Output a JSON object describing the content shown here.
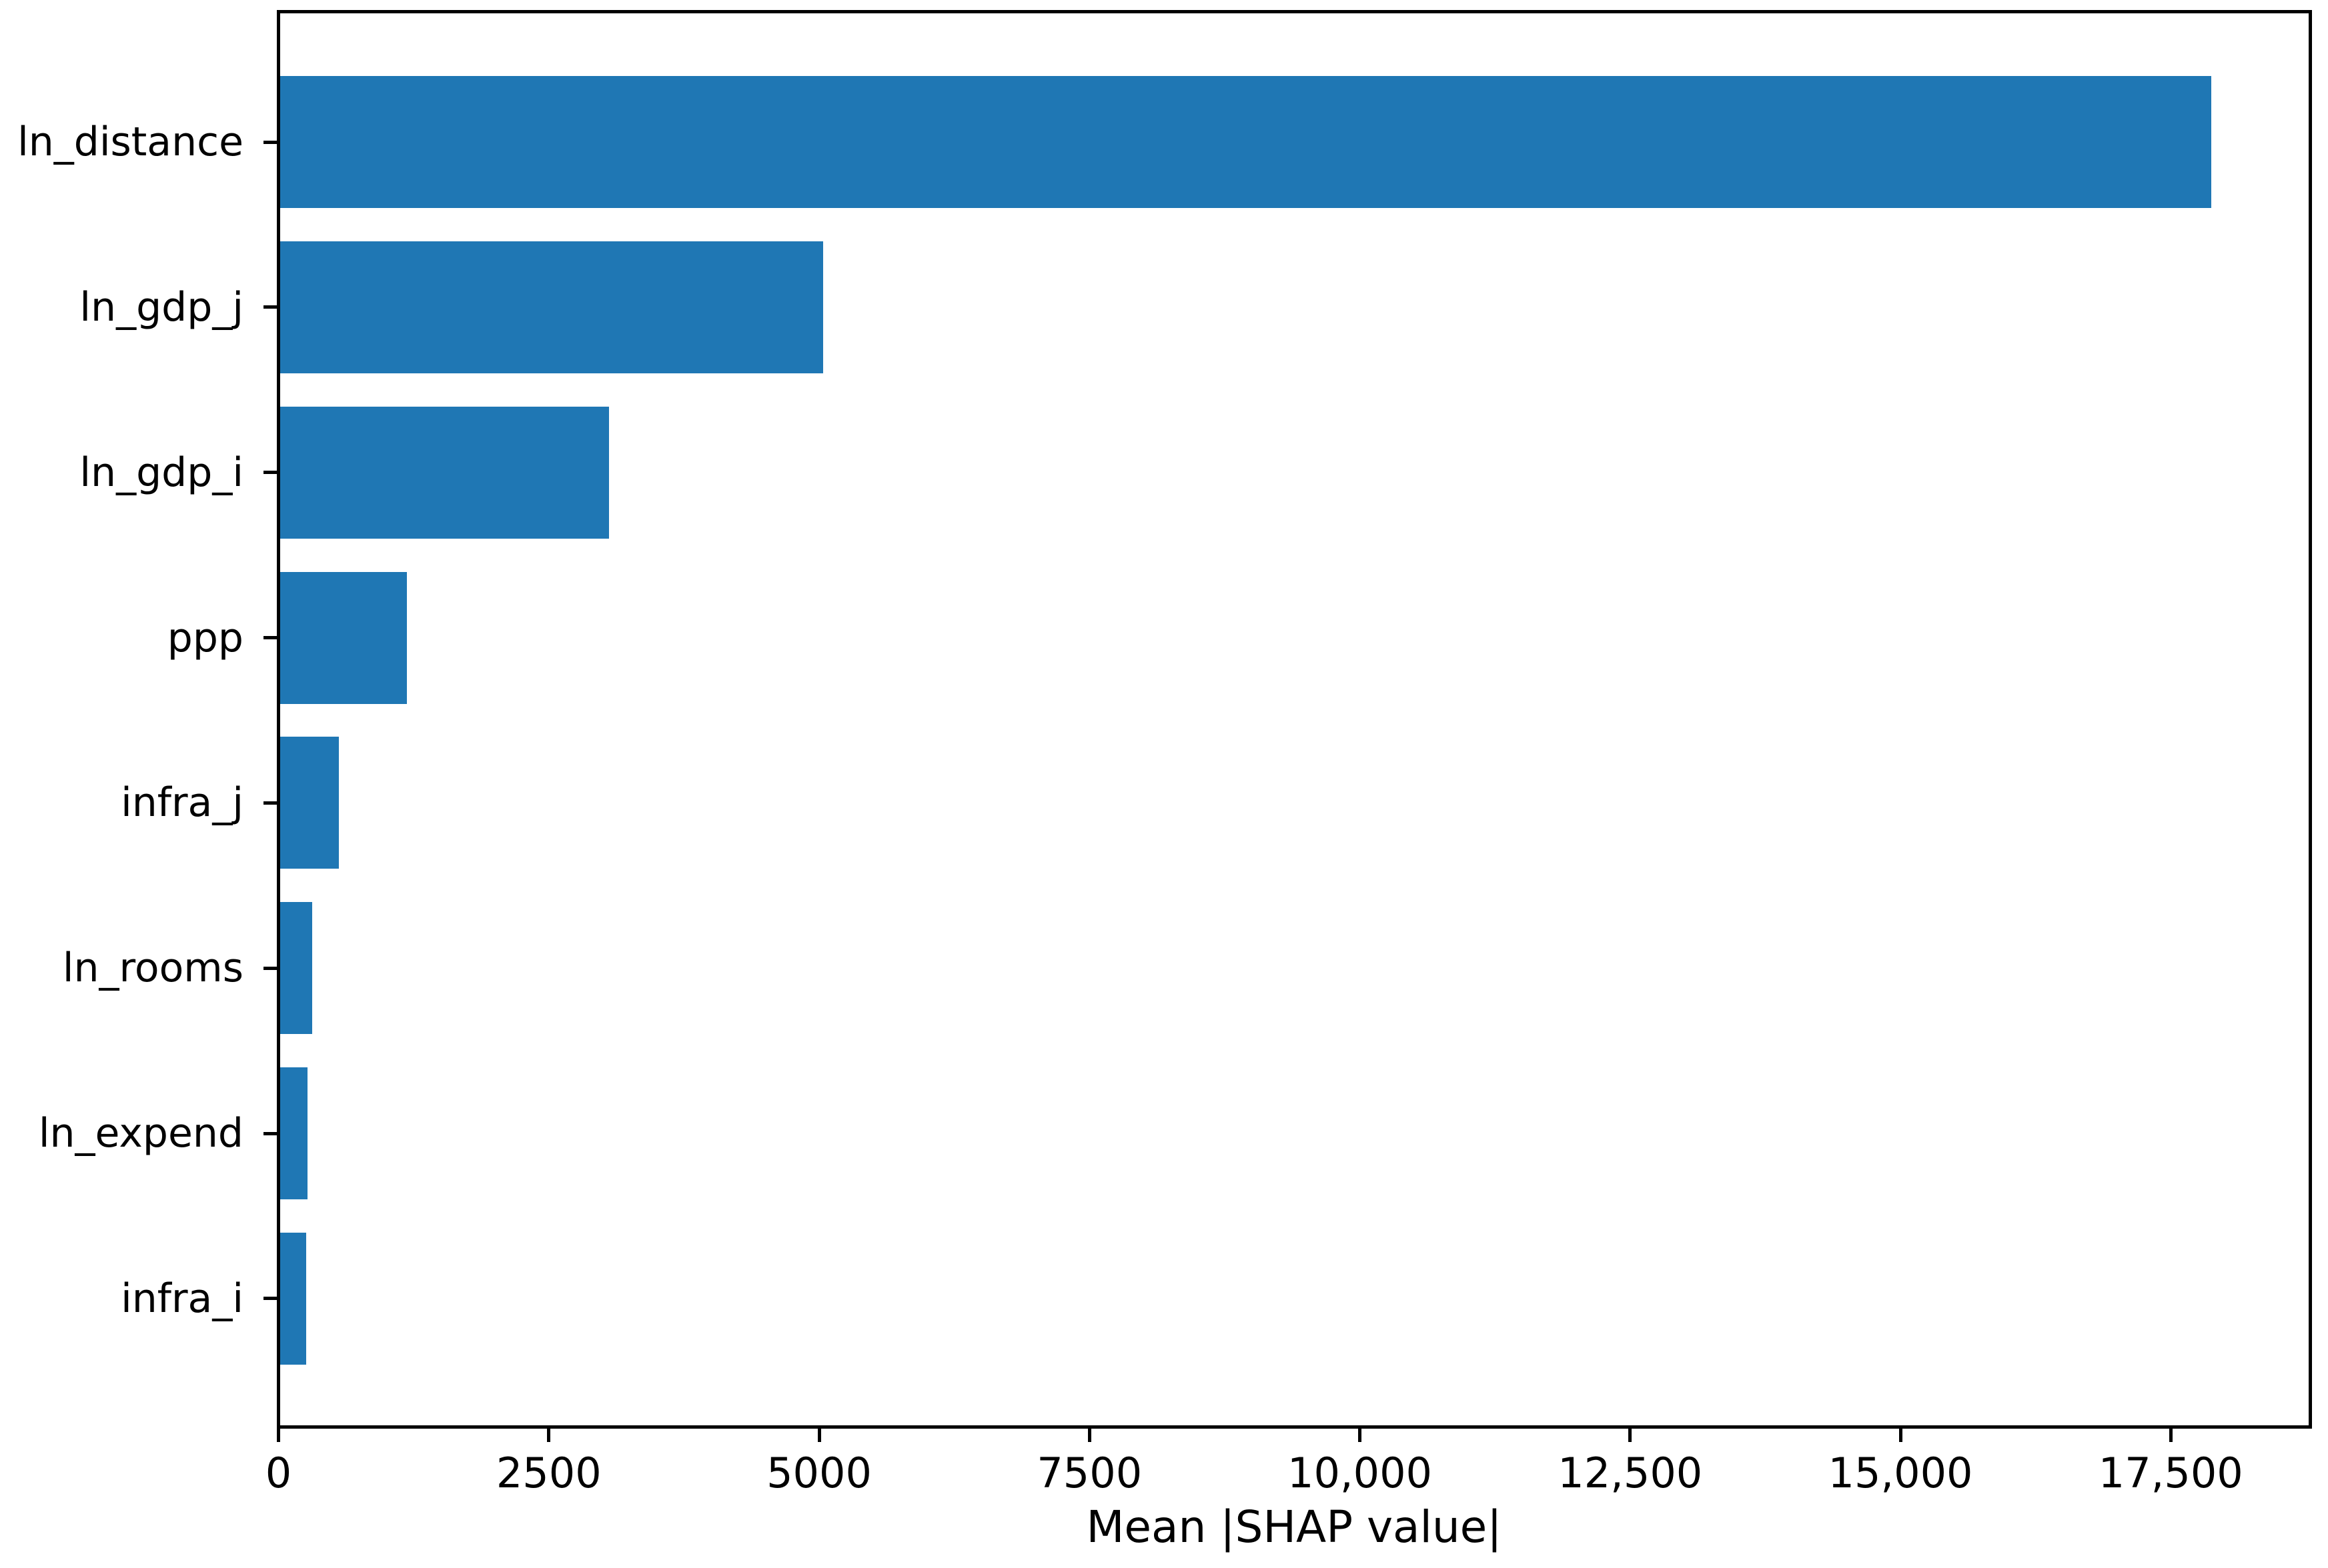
{
  "chart_data": {
    "type": "bar",
    "orientation": "horizontal",
    "title": "",
    "xlabel": "Mean |SHAP value|",
    "ylabel": "",
    "categories": [
      "ln_distance",
      "ln_gdp_j",
      "ln_gdp_i",
      "ppp",
      "infra_j",
      "ln_rooms",
      "ln_expend",
      "infra_i"
    ],
    "values": [
      17860,
      5020,
      3040,
      1170,
      540,
      295,
      250,
      240
    ],
    "x_ticks": [
      {
        "label": "0",
        "value": 0
      },
      {
        "label": "2500",
        "value": 2500
      },
      {
        "label": "5000",
        "value": 5000
      },
      {
        "label": "7500",
        "value": 7500
      },
      {
        "label": "10,000",
        "value": 10000
      },
      {
        "label": "12,500",
        "value": 12500
      },
      {
        "label": "15,000",
        "value": 15000
      },
      {
        "label": "17,500",
        "value": 17500
      }
    ],
    "xlim": [
      0,
      18760
    ],
    "grid": false,
    "legend_position": "none",
    "bar_color": "#1f77b4",
    "axis_color": "#000000",
    "background_color": "#ffffff"
  }
}
